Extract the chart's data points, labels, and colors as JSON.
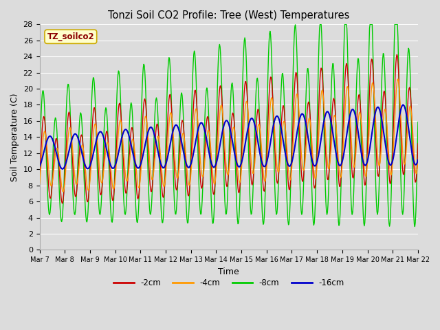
{
  "title": "Tonzi Soil CO2 Profile: Tree (West) Temperatures",
  "xlabel": "Time",
  "ylabel": "Soil Temperature (C)",
  "legend_label": "TZ_soilco2",
  "ylim": [
    0,
    28
  ],
  "yticks": [
    0,
    2,
    4,
    6,
    8,
    10,
    12,
    14,
    16,
    18,
    20,
    22,
    24,
    26,
    28
  ],
  "series_labels": [
    "-2cm",
    "-4cm",
    "-8cm",
    "-16cm"
  ],
  "series_colors": [
    "#cc0000",
    "#ff9900",
    "#00cc00",
    "#0000cc"
  ],
  "background_color": "#dcdcdc",
  "x_ticks": [
    "Mar 7",
    "Mar 8",
    "Mar 9",
    "Mar 10",
    "Mar 11",
    "Mar 12",
    "Mar 13",
    "Mar 14",
    "Mar 15",
    "Mar 16",
    "Mar 17",
    "Mar 18",
    "Mar 19",
    "Mar 20",
    "Mar 21",
    "Mar 22"
  ],
  "n_points": 720,
  "time_days": 15
}
